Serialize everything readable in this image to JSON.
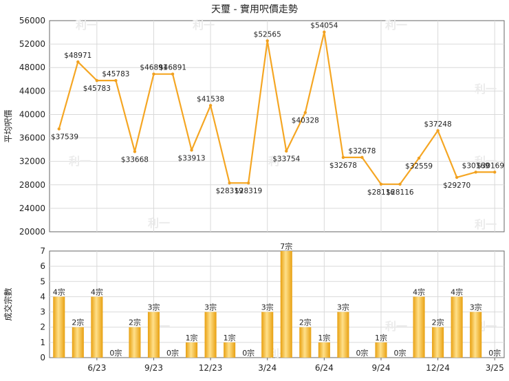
{
  "title": "天璽 - 實用呎價走勢",
  "watermark": "利一",
  "colors": {
    "line": "#f5a623",
    "line_marker": "#f0a020",
    "bar_light": "#ffe08a",
    "bar_dark": "#e8a010",
    "grid": "#d9d9d9",
    "axis": "#666666",
    "text": "#222222"
  },
  "chart_data": [
    {
      "type": "line",
      "ylabel": "平均呎價",
      "ylim": [
        20000,
        56000
      ],
      "yticks": [
        "20000",
        "24000",
        "28000",
        "32000",
        "36000",
        "40000",
        "44000",
        "48000",
        "52000",
        "56000"
      ],
      "grid": true,
      "points": [
        {
          "x": 0,
          "y": 37539,
          "label": "$37539"
        },
        {
          "x": 1,
          "y": 48971,
          "label": "$48971"
        },
        {
          "x": 2,
          "y": 45783,
          "label": "$45783"
        },
        {
          "x": 3,
          "y": 45783,
          "label": "$45783"
        },
        {
          "x": 4,
          "y": 33668,
          "label": "$33668"
        },
        {
          "x": 5,
          "y": 46891,
          "label": "$46891"
        },
        {
          "x": 6,
          "y": 46891,
          "label": "$46891"
        },
        {
          "x": 7,
          "y": 33913,
          "label": "$33913"
        },
        {
          "x": 8,
          "y": 41538,
          "label": "$41538"
        },
        {
          "x": 9,
          "y": 28319,
          "label": "$28319"
        },
        {
          "x": 10,
          "y": 28319,
          "label": "$28319"
        },
        {
          "x": 11,
          "y": 52565,
          "label": "$52565"
        },
        {
          "x": 12,
          "y": 33754,
          "label": "$33754"
        },
        {
          "x": 13,
          "y": 40328,
          "label": "$40328"
        },
        {
          "x": 14,
          "y": 54054,
          "label": "$54054"
        },
        {
          "x": 15,
          "y": 32678,
          "label": "$32678"
        },
        {
          "x": 16,
          "y": 32678,
          "label": "$32678"
        },
        {
          "x": 17,
          "y": 28116,
          "label": "$28116"
        },
        {
          "x": 18,
          "y": 28116,
          "label": "$28116"
        },
        {
          "x": 19,
          "y": 32559,
          "label": "$32559"
        },
        {
          "x": 20,
          "y": 37248,
          "label": "$37248"
        },
        {
          "x": 21,
          "y": 29270,
          "label": "$29270"
        },
        {
          "x": 22,
          "y": 30169,
          "label": "$30169"
        },
        {
          "x": 23,
          "y": 30169,
          "label": "$30169"
        }
      ]
    },
    {
      "type": "bar",
      "ylabel": "成交宗數",
      "ylim": [
        0,
        7
      ],
      "yticks": [
        "0",
        "1",
        "2",
        "3",
        "4",
        "5",
        "6",
        "7"
      ],
      "grid": true,
      "values": [
        4,
        2,
        4,
        0,
        2,
        3,
        0,
        1,
        3,
        1,
        0,
        3,
        7,
        2,
        1,
        3,
        0,
        1,
        0,
        4,
        2,
        4,
        3,
        0
      ],
      "labels": [
        "4宗",
        "2宗",
        "4宗",
        "0宗",
        "2宗",
        "3宗",
        "0宗",
        "1宗",
        "3宗",
        "1宗",
        "0宗",
        "3宗",
        "7宗",
        "2宗",
        "1宗",
        "3宗",
        "0宗",
        "1宗",
        "0宗",
        "4宗",
        "2宗",
        "4宗",
        "3宗",
        "0宗"
      ],
      "x_ticks": [
        {
          "x": 2,
          "label": "6/23"
        },
        {
          "x": 5,
          "label": "9/23"
        },
        {
          "x": 8,
          "label": "12/23"
        },
        {
          "x": 11,
          "label": "3/24"
        },
        {
          "x": 14,
          "label": "6/24"
        },
        {
          "x": 17,
          "label": "9/24"
        },
        {
          "x": 20,
          "label": "12/24"
        },
        {
          "x": 23,
          "label": "3/25"
        }
      ]
    }
  ]
}
